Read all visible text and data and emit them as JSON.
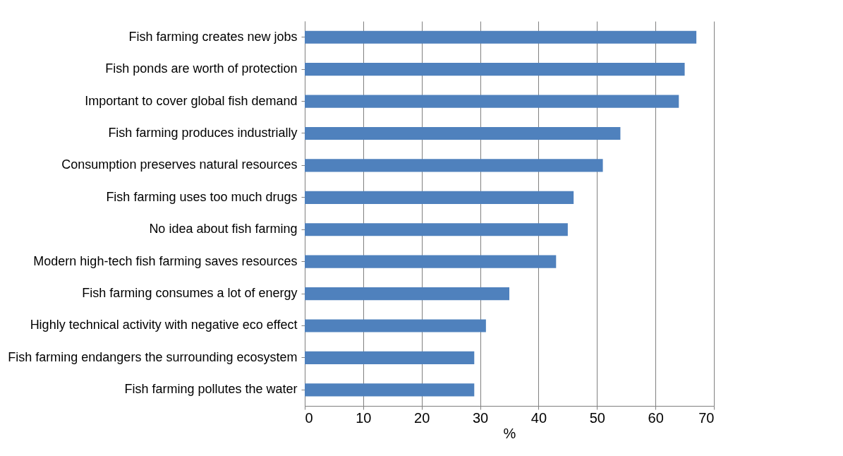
{
  "chart_data": {
    "type": "bar",
    "orientation": "horizontal",
    "xlabel": "%",
    "categories": [
      "Fish farming creates new jobs",
      "Fish ponds are worth of protection",
      "Important to cover global fish demand",
      "Fish farming produces industrially",
      "Consumption preserves natural resources",
      "Fish farming uses too much drugs",
      "No idea about fish farming",
      "Modern high-tech fish farming saves resources",
      "Fish farming consumes a lot of energy",
      "Highly technical activity with negative eco effect",
      "Fish farming endangers the surrounding ecosystem",
      "Fish farming pollutes the water"
    ],
    "values": [
      67,
      65,
      64,
      54,
      51,
      46,
      45,
      43,
      35,
      31,
      29,
      29
    ],
    "color": "#4f81bd",
    "xlim": [
      0,
      70
    ],
    "xticks": [
      0,
      10,
      20,
      30,
      40,
      50,
      60,
      70
    ],
    "grid": "x"
  }
}
